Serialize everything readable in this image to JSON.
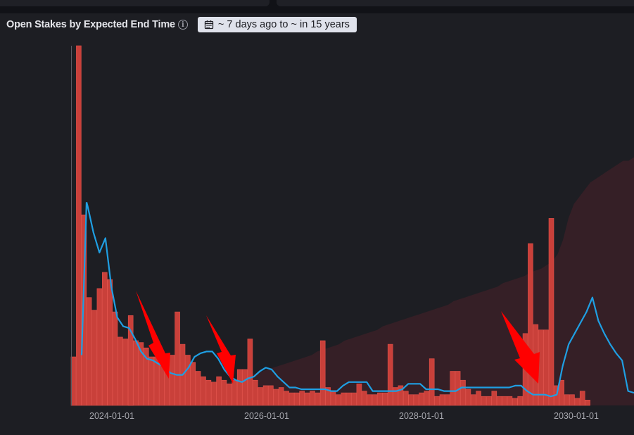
{
  "panel": {
    "title": "Open Stakes by Expected End Time",
    "info_icon": "info-icon",
    "time_range": "~ 7 days ago to ~ in 15 years",
    "calendar_icon": "calendar-icon"
  },
  "colors": {
    "bars": "#c9403a",
    "line": "#1f9fe3",
    "area": "#3a2027",
    "background": "#1d1e23"
  },
  "chart_data": {
    "type": "bar",
    "title": "Open Stakes by Expected End Time",
    "x_ticks": [
      "2024-01-01",
      "2026-01-01",
      "2028-01-01",
      "2030-01-01"
    ],
    "x_tick_offsets_months": [
      0,
      24,
      48,
      72
    ],
    "x_start_month": -6,
    "x_end_month": 80,
    "ymax": 100,
    "grid": false,
    "legend": "none",
    "series": [
      {
        "type": "bar",
        "values": [
          13.5,
          100,
          53,
          30,
          26.5,
          32.5,
          37,
          35,
          26,
          19,
          18.5,
          25,
          18,
          17.5,
          16,
          13.5,
          13.5,
          14,
          13,
          14,
          26,
          17,
          14,
          12,
          9.5,
          8,
          7,
          6.5,
          8,
          7,
          6,
          7,
          10,
          10,
          18.5,
          7,
          5,
          5.5,
          5.5,
          4.5,
          5,
          4,
          3.5,
          3.5,
          4,
          3.5,
          4,
          3.5,
          18,
          5,
          4,
          3,
          3.5,
          3.5,
          3.5,
          6,
          4,
          3,
          3,
          3.5,
          3.5,
          17,
          5,
          5.5,
          4,
          3,
          3,
          3.5,
          4,
          13,
          2.5,
          3,
          3,
          9.5,
          9.5,
          7,
          4.5,
          3,
          4,
          2.5,
          2.5,
          4,
          2.5,
          2.5,
          2.5,
          2,
          2.5,
          20,
          45,
          22.5,
          21,
          21,
          52,
          5.5,
          7,
          3,
          3,
          2,
          4,
          1.5
        ]
      },
      {
        "type": "line",
        "values": [
          56.5,
          55.5,
          48,
          42.5,
          46.5,
          33,
          24.5,
          22,
          21.5,
          18.5,
          15,
          13,
          12.5,
          11.5,
          10.5,
          9,
          8.5,
          8.5,
          10.5,
          13.5,
          14.5,
          15,
          15,
          13,
          10,
          8,
          7,
          6.5,
          7.5,
          8,
          9.5,
          10.5,
          10,
          8,
          6.5,
          5,
          5,
          4.5,
          4.5,
          4.5,
          4.5,
          4.5,
          4,
          4,
          5.5,
          6.5,
          6.5,
          6.5,
          6.5,
          4,
          4,
          4,
          4,
          4,
          4.5,
          6,
          6,
          6,
          4.5,
          4.5,
          4.5,
          4,
          4,
          4,
          5,
          5,
          5,
          5,
          5,
          5,
          5,
          5,
          5,
          5.5,
          5.5,
          4,
          3,
          3,
          3,
          2.5,
          3,
          11,
          17,
          20,
          23,
          26,
          30,
          23.5,
          20,
          17,
          14.5,
          12.5,
          4,
          3.5
        ]
      },
      {
        "type": "area",
        "values": [
          0,
          0,
          0,
          0.5,
          1,
          1.5,
          2,
          2.5,
          3,
          3.5,
          4,
          4.5,
          5,
          5.5,
          6,
          6.5,
          7,
          7.5,
          8,
          8.5,
          9,
          9.5,
          10,
          10.5,
          11,
          11.5,
          12,
          12.5,
          13,
          13.5,
          14,
          15,
          15.5,
          16,
          16.5,
          17,
          18,
          18.5,
          19,
          19.5,
          20,
          20.5,
          21,
          22,
          22.5,
          23,
          23.5,
          24,
          24.5,
          25,
          25.5,
          26,
          26.5,
          27,
          27.5,
          28,
          29,
          29.5,
          30,
          30.5,
          31,
          31.5,
          32,
          32.5,
          33,
          34,
          34.5,
          35,
          35.5,
          36,
          37,
          37.5,
          38,
          39,
          40,
          42,
          46,
          52,
          56,
          58,
          60,
          62,
          63,
          64,
          65,
          66,
          67,
          68,
          68,
          69
        ]
      }
    ]
  }
}
